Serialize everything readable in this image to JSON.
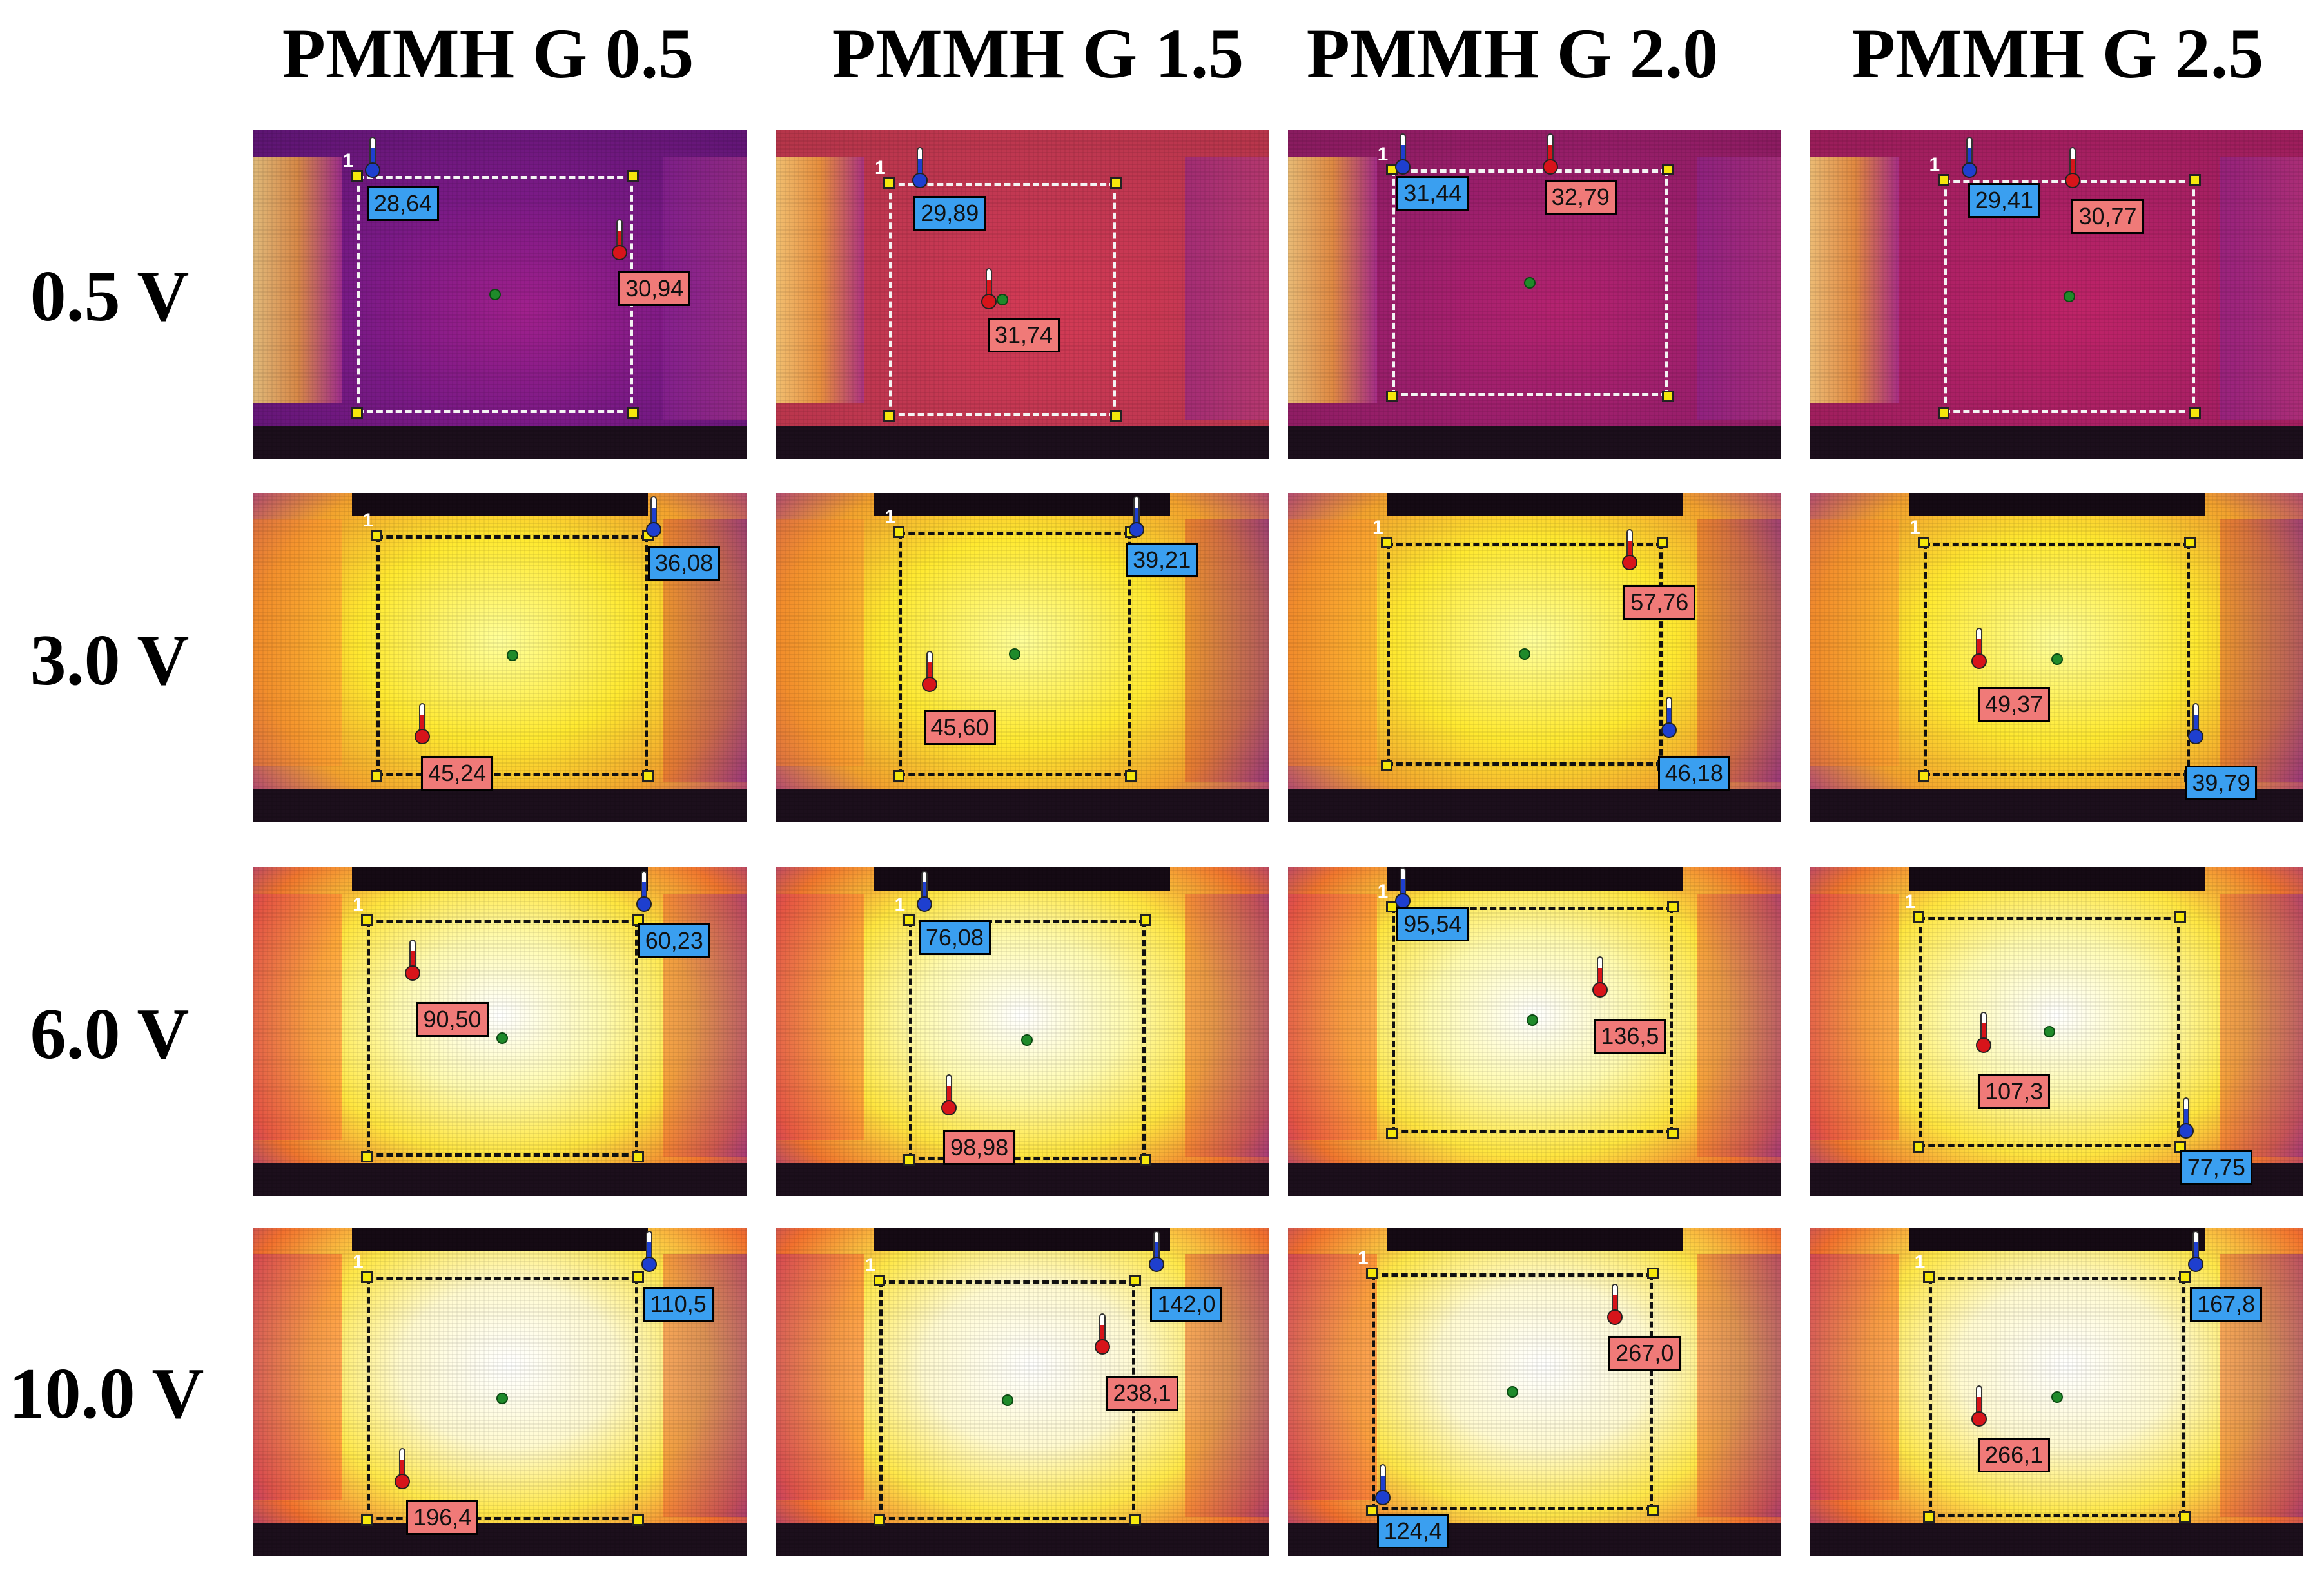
{
  "columns": [
    "PMMH G 0.5",
    "PMMH G 1.5",
    "PMMH G 2.0",
    "PMMH G 2.5"
  ],
  "rows": [
    "0.5 V",
    "3.0 V",
    "6.0 V",
    "10.0 V"
  ],
  "roi_label": "1",
  "cells": [
    [
      {
        "min": "28,64",
        "max": "30,94"
      },
      {
        "min": "29,89",
        "max": "31,74"
      },
      {
        "min": "31,44",
        "max": "32,79"
      },
      {
        "min": "29,41",
        "max": "30,77"
      }
    ],
    [
      {
        "min": "36,08",
        "max": "45,24"
      },
      {
        "min": "39,21",
        "max": "45,60"
      },
      {
        "min": "46,18",
        "max": "57,76"
      },
      {
        "min": "39,79",
        "max": "49,37"
      }
    ],
    [
      {
        "min": "60,23",
        "max": "90,50"
      },
      {
        "min": "76,08",
        "max": "98,98"
      },
      {
        "min": "95,54",
        "max": "136,5"
      },
      {
        "min": "77,75",
        "max": "107,3"
      }
    ],
    [
      {
        "min": "110,5",
        "max": "196,4"
      },
      {
        "min": "142,0",
        "max": "238,1"
      },
      {
        "min": "124,4",
        "max": "267,0"
      },
      {
        "min": "167,8",
        "max": "266,1"
      }
    ]
  ],
  "colors": {
    "min_label": "#3a9ff0",
    "max_label": "#f07a78",
    "roi_corner": "#f5e70c",
    "center_marker": "#1f8a2a"
  },
  "icons": [
    "thermometer-min-icon",
    "thermometer-max-icon"
  ]
}
